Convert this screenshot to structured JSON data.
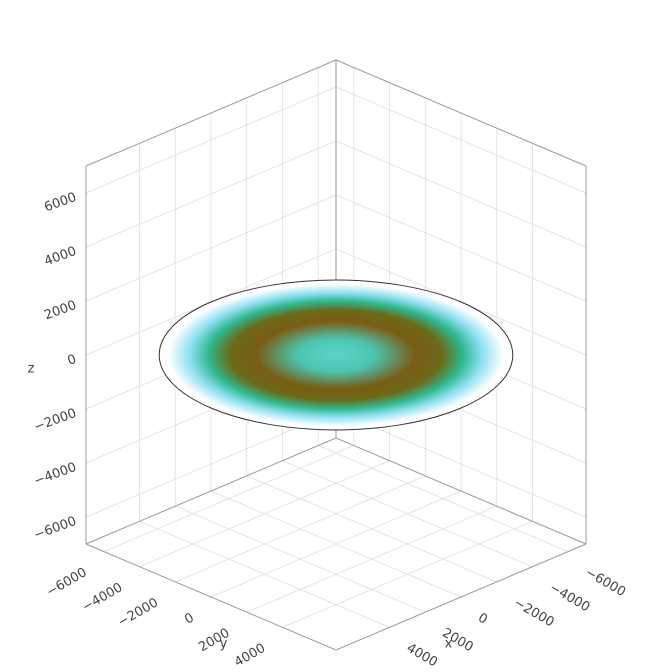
{
  "chart_data": {
    "type": "surface",
    "xlabel": "x",
    "ylabel": "y",
    "zlabel": "z",
    "xlim": [
      -7000,
      7000
    ],
    "ylim": [
      -7000,
      7000
    ],
    "zlim": [
      -7000,
      7000
    ],
    "xticks": [
      {
        "value": -6000,
        "label": "−6000"
      },
      {
        "value": -4000,
        "label": "−4000"
      },
      {
        "value": -2000,
        "label": "−2000"
      },
      0,
      2000,
      4000
    ],
    "yticks": [
      {
        "value": -6000,
        "label": "−6000"
      },
      {
        "value": -4000,
        "label": "−4000"
      },
      {
        "value": -2000,
        "label": "−2000"
      },
      0,
      2000,
      4000
    ],
    "zticks": [
      {
        "value": -6000,
        "label": "−6000"
      },
      {
        "value": -4000,
        "label": "−4000"
      },
      {
        "value": -2000,
        "label": "−2000"
      },
      0,
      2000,
      4000,
      6000
    ],
    "grid": true,
    "surface": {
      "radius": 7000,
      "z": 0,
      "colorscale": [
        "#5ad4c6",
        "#4cc4b0",
        "#7a5c14",
        "#6b6a18",
        "#2fb88e",
        "#8fe0f2",
        "#ffffff"
      ]
    }
  }
}
